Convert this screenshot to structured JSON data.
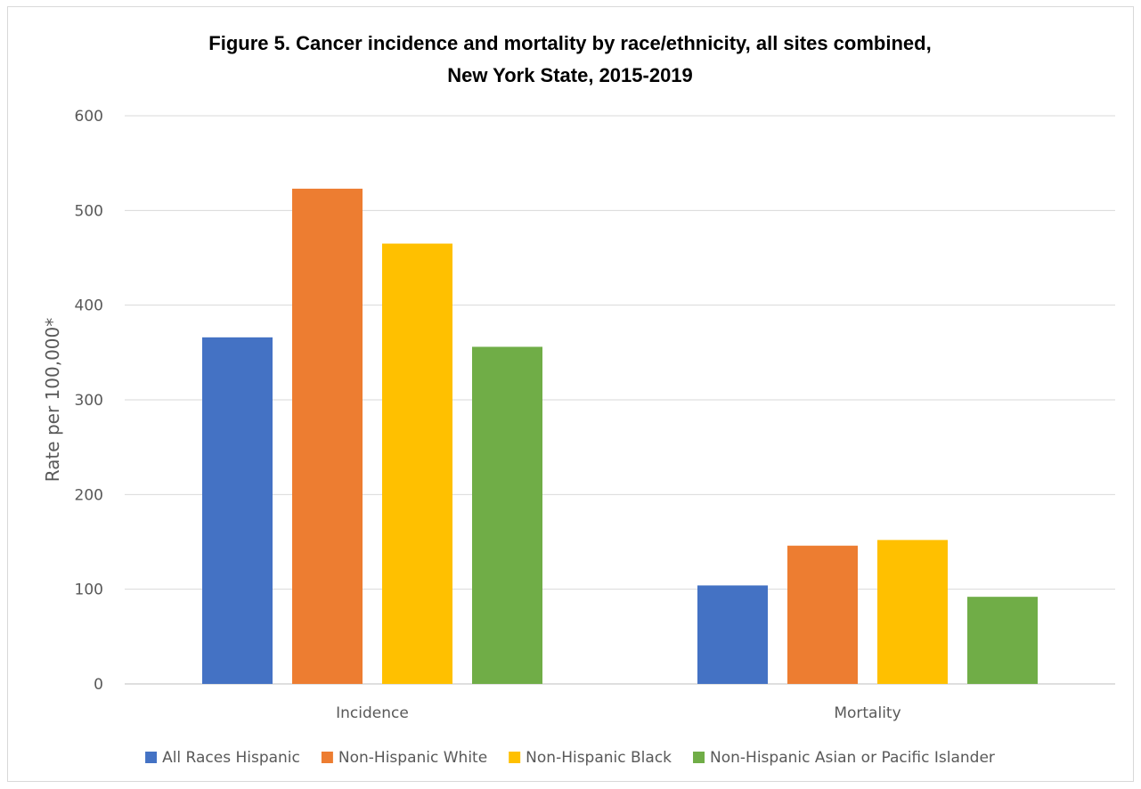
{
  "chart_data": {
    "type": "bar",
    "title_line1": "Figure 5. Cancer incidence and mortality by race/ethnicity, all sites combined,",
    "title_line2": "New York State, 2015-2019",
    "xlabel": "",
    "ylabel": "Rate per 100,000*",
    "ylim": [
      0,
      600
    ],
    "yticks": [
      0,
      100,
      200,
      300,
      400,
      500,
      600
    ],
    "grid": true,
    "legend_position": "bottom",
    "categories": [
      "Incidence",
      "Mortality"
    ],
    "series": [
      {
        "name": "All Races Hispanic",
        "color": "#4472C4",
        "values": [
          366,
          104
        ]
      },
      {
        "name": "Non-Hispanic White",
        "color": "#ED7D31",
        "values": [
          523,
          146
        ]
      },
      {
        "name": "Non-Hispanic Black",
        "color": "#FFC000",
        "values": [
          465,
          152
        ]
      },
      {
        "name": "Non-Hispanic Asian or Pacific Islander",
        "color": "#70AD47",
        "values": [
          356,
          92
        ]
      }
    ]
  }
}
